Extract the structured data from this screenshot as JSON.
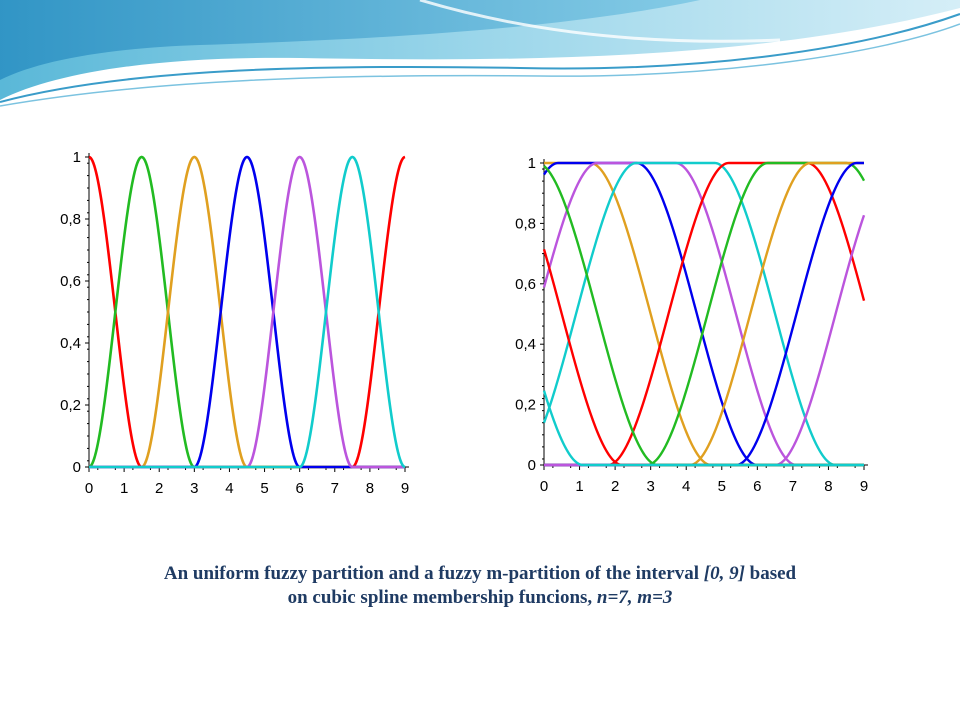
{
  "caption": {
    "part1": "An uniform fuzzy partition and a fuzzy m-partition of the interval ",
    "interval": "[0, 9]",
    "part2": " based",
    "line2_prefix": "on cubic spline membership funcions,  ",
    "params": "n=7, m=3"
  },
  "chart_data": [
    {
      "type": "line",
      "xlim": [
        0,
        9
      ],
      "ylim": [
        0,
        1
      ],
      "xticks": [
        0,
        1,
        2,
        3,
        4,
        5,
        6,
        7,
        8,
        9
      ],
      "yticks": [
        0,
        0.2,
        0.4,
        0.6,
        0.8,
        1
      ],
      "xtick_labels": [
        "0",
        "1",
        "2",
        "3",
        "4",
        "5",
        "6",
        "7",
        "8",
        "9"
      ],
      "ytick_labels": [
        "0",
        "0,2",
        "0,4",
        "0,6",
        "0,8",
        "1"
      ],
      "grid": false,
      "series": [
        {
          "color": "#ff0000",
          "peaks": [
            0,
            9
          ],
          "support_half_width": 1.5
        },
        {
          "color": "#22bb22",
          "peaks": [
            1.5
          ],
          "support_half_width": 1.5
        },
        {
          "color": "#e0a020",
          "peaks": [
            3
          ],
          "support_half_width": 1.5
        },
        {
          "color": "#0000ee",
          "peaks": [
            4.5
          ],
          "support_half_width": 1.5
        },
        {
          "color": "#bb55dd",
          "peaks": [
            6
          ],
          "support_half_width": 1.5
        },
        {
          "color": "#11cccc",
          "peaks": [
            7.5
          ],
          "support_half_width": 1.5
        }
      ]
    },
    {
      "type": "line",
      "xlim": [
        0,
        9
      ],
      "ylim": [
        0,
        1
      ],
      "xticks": [
        0,
        1,
        2,
        3,
        4,
        5,
        6,
        7,
        8,
        9
      ],
      "yticks": [
        0,
        0.2,
        0.4,
        0.6,
        0.8,
        1
      ],
      "xtick_labels": [
        "0",
        "1",
        "2",
        "3",
        "4",
        "5",
        "6",
        "7",
        "8",
        "9"
      ],
      "ytick_labels": [
        "0",
        "0,2",
        "0,4",
        "0,6",
        "0,8",
        "1"
      ],
      "grid": false,
      "series": [
        {
          "color": "#e0a020",
          "center": 0.2,
          "half_width": 4.5,
          "flat_half_width": 1.1
        },
        {
          "color": "#0000ee",
          "center": 1.5,
          "half_width": 4.5,
          "flat_half_width": 1.1
        },
        {
          "color": "#bb55dd",
          "center": 2.6,
          "half_width": 4.5,
          "flat_half_width": 1.1
        },
        {
          "color": "#11cccc",
          "center": 3.7,
          "half_width": 4.5,
          "flat_half_width": 1.1
        },
        {
          "color": "#ff0000",
          "center": 6.3,
          "half_width": 4.5,
          "flat_half_width": 1.1
        },
        {
          "color": "#22bb22",
          "center": 7.4,
          "half_width": 4.5,
          "flat_half_width": 1.1
        },
        {
          "color": "#e0a020",
          "center": 8.6,
          "half_width": 4.5,
          "flat_half_width": 1.1
        },
        {
          "color": "#0000ee",
          "center": 9.9,
          "half_width": 4.5,
          "flat_half_width": 1.1
        },
        {
          "color": "#bb55dd",
          "center": 11.0,
          "half_width": 4.5,
          "flat_half_width": 1.1
        },
        {
          "color": "#ff0000",
          "center": -2.3,
          "half_width": 4.5,
          "flat_half_width": 1.1
        },
        {
          "color": "#22bb22",
          "center": -1.3,
          "half_width": 4.5,
          "flat_half_width": 1.1
        },
        {
          "color": "#11cccc",
          "center": -3.4,
          "half_width": 4.5,
          "flat_half_width": 1.1
        }
      ]
    }
  ]
}
